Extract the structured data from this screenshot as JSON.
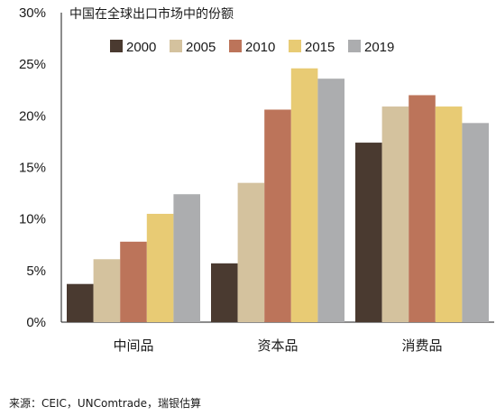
{
  "chart_data": {
    "type": "bar",
    "title": "中国在全球出口市场中的份额",
    "categories": [
      "中间品",
      "资本品",
      "消费品"
    ],
    "series": [
      {
        "name": "2000",
        "color": "#4a3a30",
        "values": [
          3.7,
          5.7,
          17.4
        ]
      },
      {
        "name": "2005",
        "color": "#d4c29e",
        "values": [
          6.1,
          13.5,
          20.9
        ]
      },
      {
        "name": "2010",
        "color": "#bc745a",
        "values": [
          7.8,
          20.6,
          22.0
        ]
      },
      {
        "name": "2015",
        "color": "#e8cb74",
        "values": [
          10.5,
          24.6,
          20.9
        ]
      },
      {
        "name": "2019",
        "color": "#acadaf",
        "values": [
          12.4,
          23.6,
          19.3
        ]
      }
    ],
    "ylim": [
      0,
      30
    ],
    "yticks": [
      "0%",
      "5%",
      "10%",
      "15%",
      "20%",
      "25%",
      "30%"
    ],
    "ytick_values": [
      0,
      5,
      10,
      15,
      20,
      25,
      30
    ],
    "legend_position": "top",
    "grid": false
  },
  "source": "来源：CEIC，UNComtrade，瑞银估算"
}
